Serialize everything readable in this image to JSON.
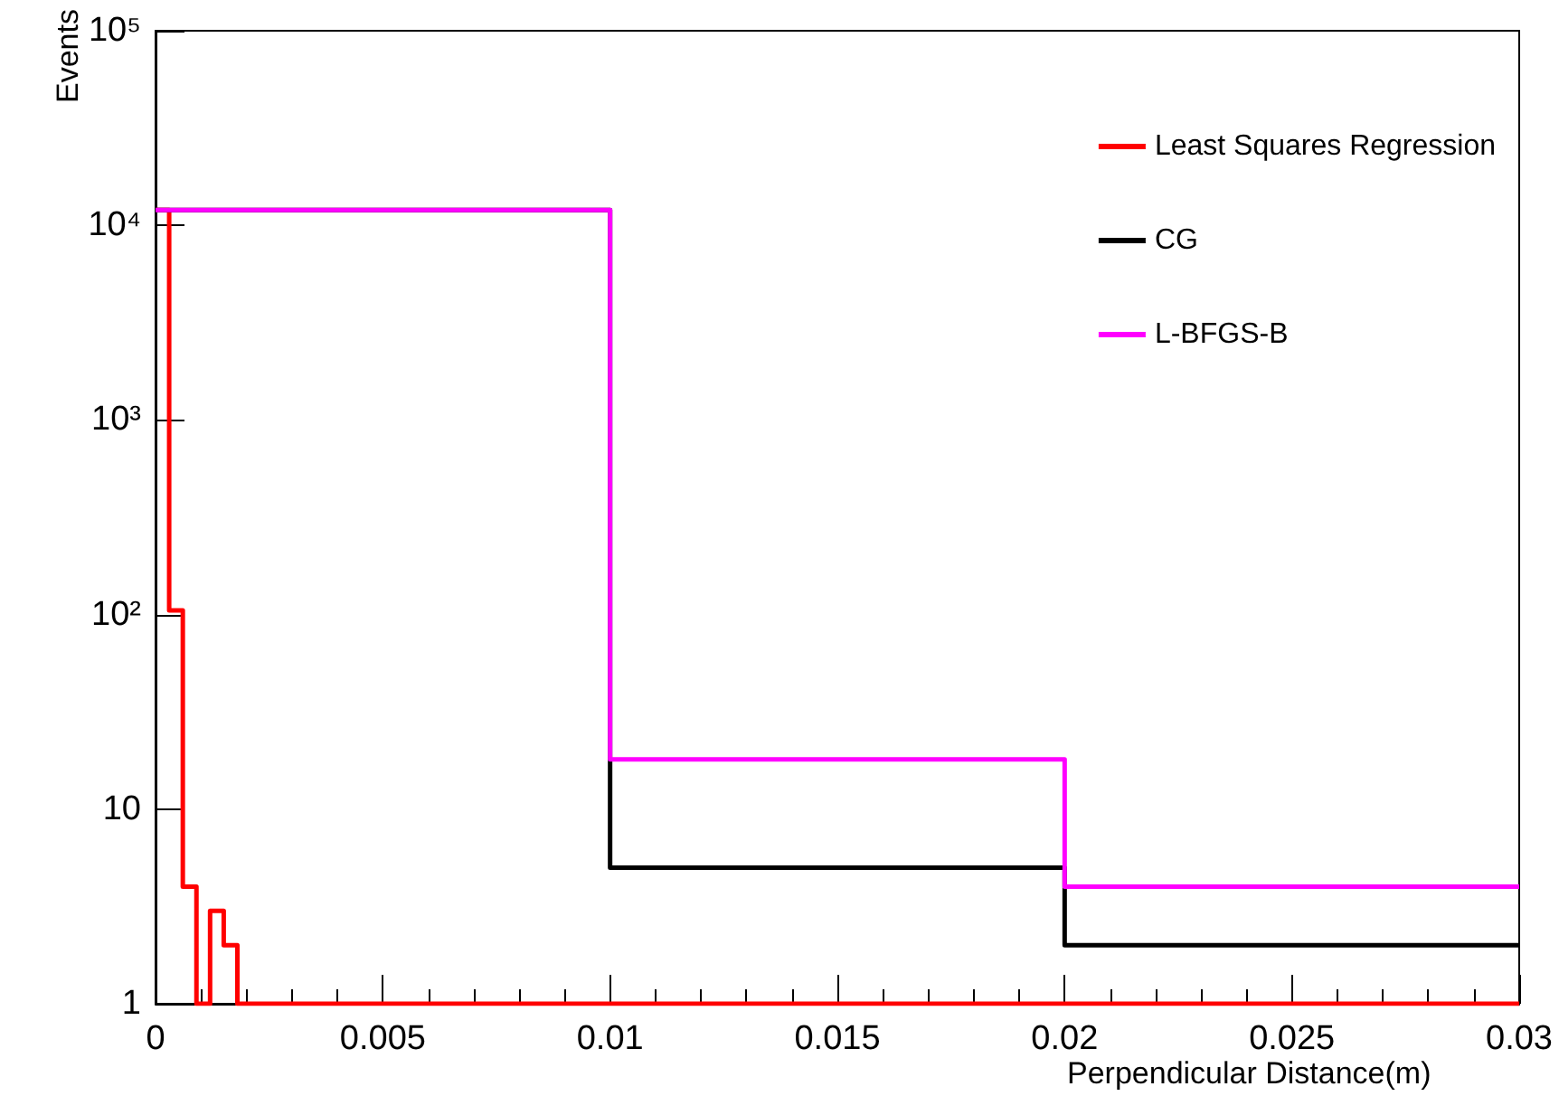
{
  "chart_data": {
    "type": "histogram",
    "xlabel": "Perpendicular Distance(m)",
    "ylabel": "Events",
    "log": "y",
    "grid": false,
    "legend": "top right",
    "xlim": [
      0,
      0.03
    ],
    "xticks": [
      0,
      0.005,
      0.01,
      0.015,
      0.02,
      0.025,
      0.03
    ],
    "ylim": [
      1,
      100000
    ],
    "yticks": [
      1,
      10,
      {
        "value": 100,
        "label": "10²"
      },
      {
        "value": 1000,
        "label": "10³"
      },
      {
        "value": 10000,
        "label": "10⁴"
      },
      {
        "value": 100000,
        "label": "10⁵"
      }
    ],
    "bins": [
      0,
      0.0003,
      0.0006,
      0.0009,
      0.0012,
      0.0015,
      0.0018,
      0.01,
      0.02,
      0.03
    ],
    "series": [
      {
        "name": "Least Squares Regression",
        "color": "#ff0000",
        "values": [
          12000,
          105,
          4,
          1,
          3,
          2,
          1,
          1,
          1
        ]
      },
      {
        "name": "CG",
        "color": "#000000",
        "values": [
          12000,
          12000,
          12000,
          12000,
          12000,
          12000,
          12000,
          5,
          2
        ]
      },
      {
        "name": "L-BFGS-B",
        "color": "#ff00ff",
        "values": [
          12000,
          12000,
          12000,
          12000,
          12000,
          12000,
          12000,
          18,
          4
        ]
      }
    ]
  }
}
